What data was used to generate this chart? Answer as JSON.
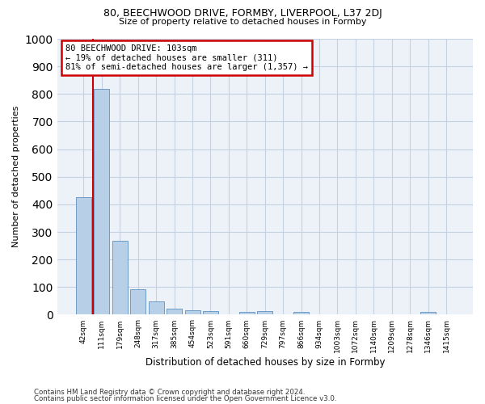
{
  "title_line1": "80, BEECHWOOD DRIVE, FORMBY, LIVERPOOL, L37 2DJ",
  "title_line2": "Size of property relative to detached houses in Formby",
  "xlabel": "Distribution of detached houses by size in Formby",
  "ylabel": "Number of detached properties",
  "bar_color": "#b8cfe8",
  "bar_edge_color": "#6090c0",
  "vline_color": "#cc0000",
  "annotation_text": "80 BEECHWOOD DRIVE: 103sqm\n← 19% of detached houses are smaller (311)\n81% of semi-detached houses are larger (1,357) →",
  "annotation_box_edgecolor": "#cc0000",
  "categories": [
    "42sqm",
    "111sqm",
    "179sqm",
    "248sqm",
    "317sqm",
    "385sqm",
    "454sqm",
    "523sqm",
    "591sqm",
    "660sqm",
    "729sqm",
    "797sqm",
    "866sqm",
    "934sqm",
    "1003sqm",
    "1072sqm",
    "1140sqm",
    "1209sqm",
    "1278sqm",
    "1346sqm",
    "1415sqm"
  ],
  "values": [
    425,
    817,
    268,
    93,
    49,
    23,
    17,
    12,
    0,
    11,
    12,
    0,
    11,
    0,
    0,
    0,
    0,
    0,
    0,
    9,
    0
  ],
  "ylim": [
    0,
    1000
  ],
  "yticks": [
    0,
    100,
    200,
    300,
    400,
    500,
    600,
    700,
    800,
    900,
    1000
  ],
  "footer_line1": "Contains HM Land Registry data © Crown copyright and database right 2024.",
  "footer_line2": "Contains public sector information licensed under the Open Government Licence v3.0.",
  "bg_color": "#edf2f9",
  "grid_color": "#c5d0e0",
  "title1_fontsize": 9,
  "title2_fontsize": 8
}
